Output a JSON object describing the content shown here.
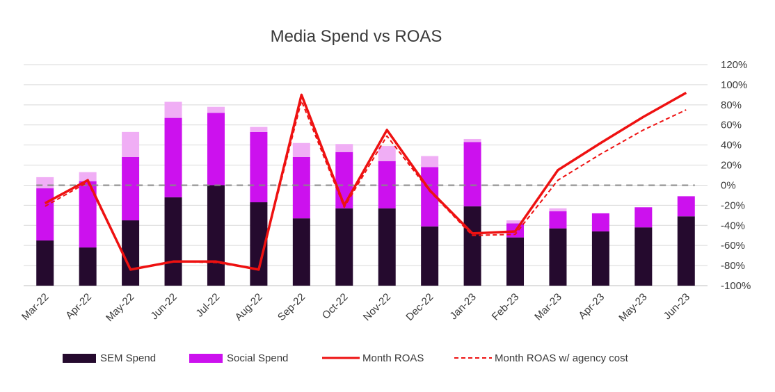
{
  "chart_data": {
    "type": "bar",
    "title": "Media Spend vs ROAS",
    "categories": [
      "Mar-22",
      "Apr-22",
      "May-22",
      "Jun-22",
      "Jul-22",
      "Aug-22",
      "Sep-22",
      "Oct-22",
      "Nov-22",
      "Dec-22",
      "Jan-23",
      "Feb-23",
      "Mar-23",
      "Apr-23",
      "May-23",
      "Jun-23"
    ],
    "stacked": true,
    "series": [
      {
        "name": "SEM Spend",
        "kind": "bar",
        "color": "#250a2e",
        "values": [
          45,
          38,
          65,
          88,
          100,
          83,
          67,
          77,
          77,
          59,
          79,
          48,
          57,
          54,
          58,
          69
        ]
      },
      {
        "name": "Social Spend",
        "kind": "bar",
        "color": "#cc11ee",
        "values": [
          52,
          66,
          63,
          79,
          72,
          70,
          61,
          56,
          47,
          59,
          64,
          14,
          17,
          18,
          20,
          20
        ]
      },
      {
        "name": "",
        "kind": "bar",
        "color": "#f0aef5",
        "values": [
          11,
          9,
          25,
          16,
          6,
          5,
          14,
          8,
          15,
          11,
          3,
          3,
          3,
          0,
          0,
          0
        ]
      },
      {
        "name": "Month ROAS",
        "kind": "line",
        "color": "#ee1111",
        "values": [
          -18,
          5,
          -84,
          -76,
          -76,
          -84,
          90,
          -20,
          55,
          -5,
          -48,
          -46,
          15,
          42,
          68,
          92
        ]
      },
      {
        "name": "Month ROAS w/ agency cost",
        "kind": "line",
        "dashed": true,
        "color": "#ee1111",
        "values": [
          -21,
          3,
          -84,
          -76,
          -77,
          -84,
          84,
          -22,
          49,
          -6,
          -50,
          -49,
          5,
          31,
          55,
          75
        ]
      }
    ],
    "y_left": {
      "min": 0,
      "max": 220,
      "labels": false
    },
    "y_right": {
      "min": -100,
      "max": 120,
      "step": 20,
      "format": "percent"
    },
    "reference_line": {
      "value": 0,
      "axis": "right",
      "style": "dashed",
      "color": "#888888"
    },
    "legend": {
      "position": "bottom",
      "entries": [
        "SEM Spend",
        "Social Spend",
        "Month ROAS",
        "Month ROAS w/ agency cost"
      ]
    },
    "grid": true
  }
}
